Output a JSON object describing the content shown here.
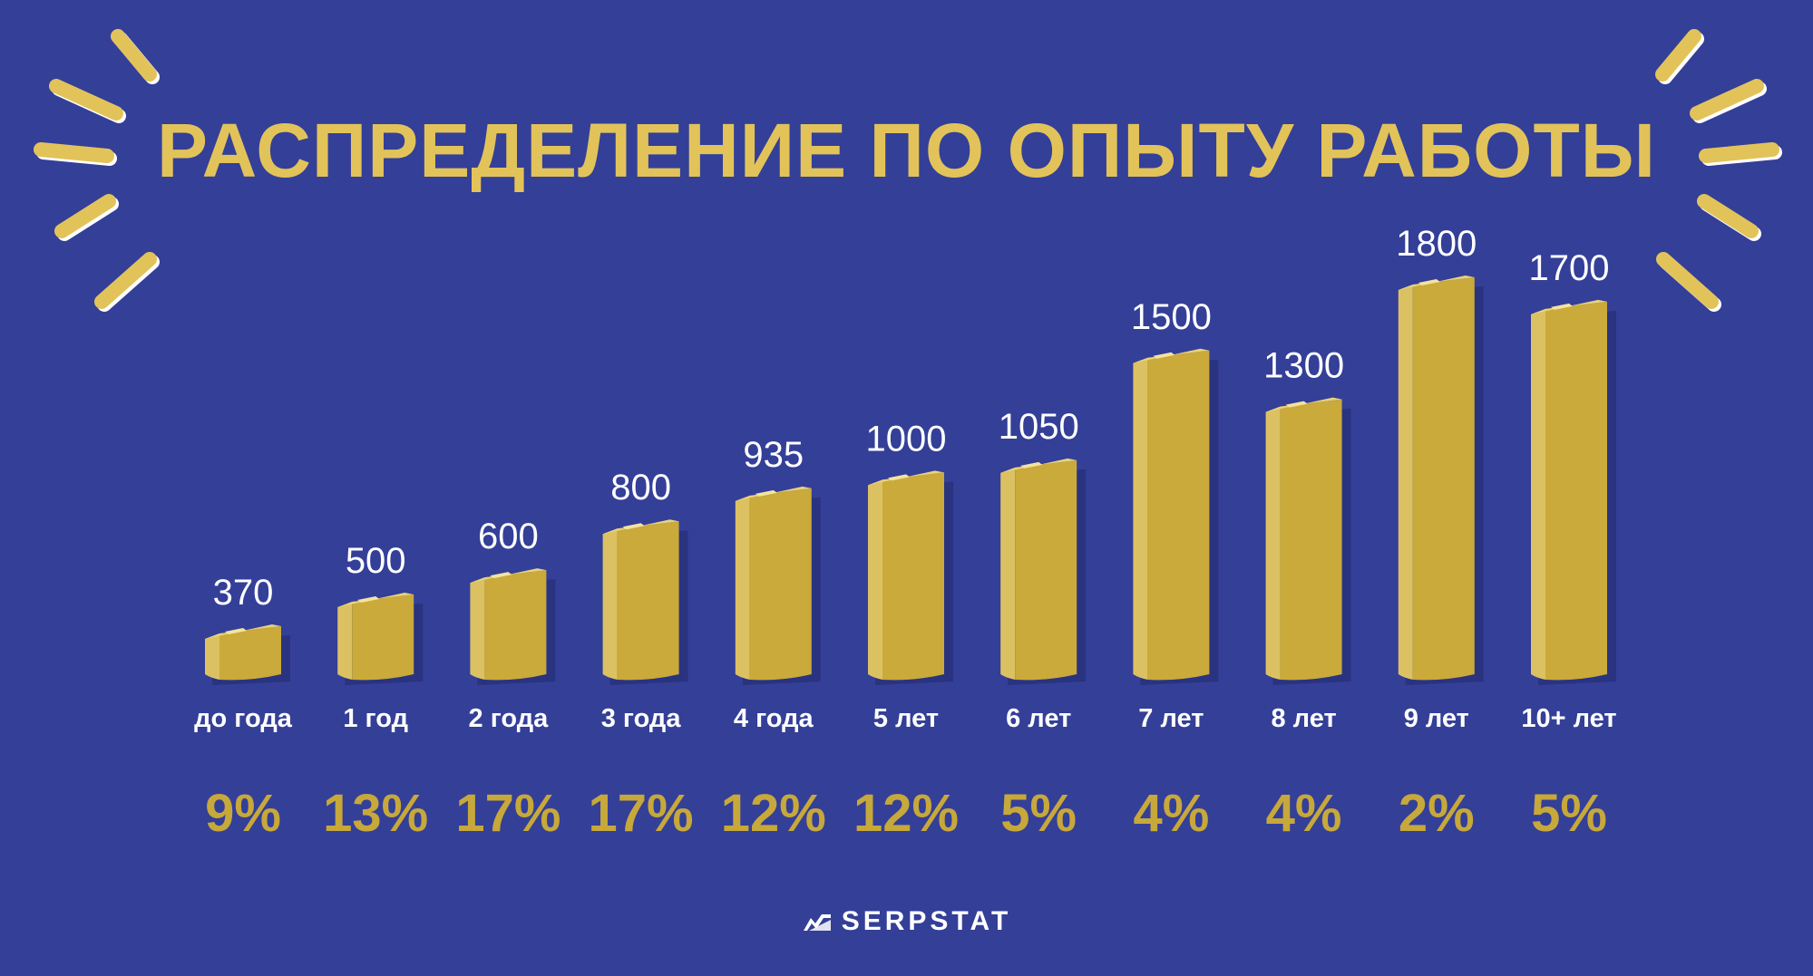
{
  "title": "РАСПРЕДЕЛЕНИЕ ПО ОПЫТУ РАБОТЫ",
  "brand": {
    "name": "SERPSTAT",
    "icon": "serpstat-logo-icon"
  },
  "colors": {
    "background": "#343f98",
    "bar_face": "#c9aa3a",
    "bar_side": "#dcc163",
    "title": "#e2c35a",
    "percent": "#c7a83a",
    "text": "#ffffff"
  },
  "chart_data": {
    "type": "bar",
    "title": "РАСПРЕДЕЛЕНИЕ ПО ОПЫТУ РАБОТЫ",
    "categories": [
      "до года",
      "1 год",
      "2 года",
      "3 года",
      "4 года",
      "5 лет",
      "6 лет",
      "7 лет",
      "8 лет",
      "9 лет",
      "10+ лет"
    ],
    "values": [
      370,
      500,
      600,
      800,
      935,
      1000,
      1050,
      1500,
      1300,
      1800,
      1700
    ],
    "value_labels": [
      "370",
      "500",
      "600",
      "800",
      "935",
      "1000",
      "1050",
      "1500",
      "1300",
      "1800",
      "1700"
    ],
    "percentages": [
      "9%",
      "13%",
      "17%",
      "17%",
      "12%",
      "12%",
      "5%",
      "4%",
      "4%",
      "2%",
      "5%"
    ],
    "xlabel": "",
    "ylabel": "",
    "ylim": [
      0,
      1800
    ],
    "grid": false,
    "legend": "none"
  }
}
